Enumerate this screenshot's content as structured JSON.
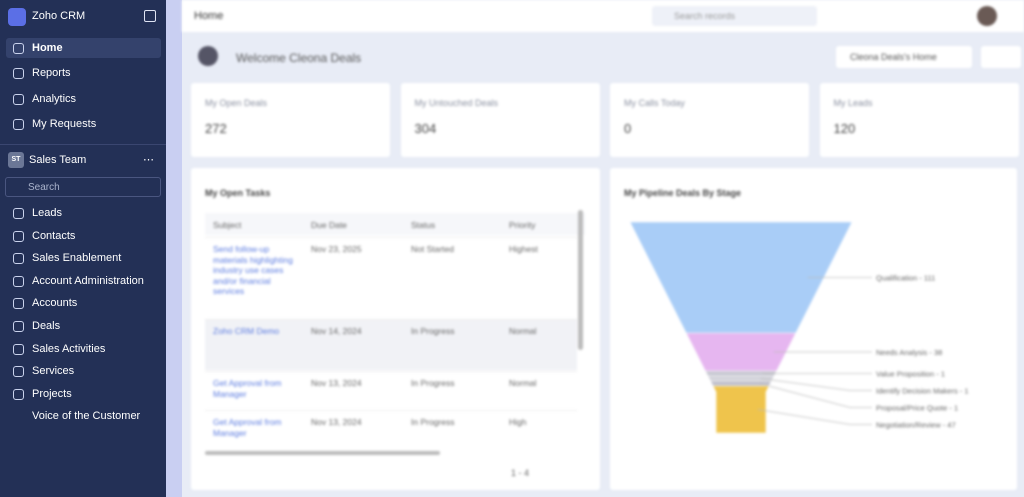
{
  "sidebar": {
    "brand": "Zoho CRM",
    "nav": [
      "Home",
      "Reports",
      "Analytics",
      "My Requests"
    ],
    "team_badge": "ST",
    "team": "Sales Team",
    "search_placeholder": "Search",
    "modules": [
      "Leads",
      "Contacts",
      "Sales Enablement",
      "Account Administration",
      "Accounts",
      "Deals",
      "Sales Activities",
      "Services",
      "Projects",
      "Voice of the Customer"
    ]
  },
  "topbar": {
    "title": "Home",
    "search_placeholder": "Search records"
  },
  "welcome": {
    "text": "Welcome Cleona Deals",
    "home_selector": "Cleona Deals's Home"
  },
  "stats": [
    {
      "label": "My Open Deals",
      "value": 272
    },
    {
      "label": "My Untouched Deals",
      "value": 304
    },
    {
      "label": "My Calls Today",
      "value": 0
    },
    {
      "label": "My Leads",
      "value": 120
    }
  ],
  "tasks": {
    "title": "My Open Tasks",
    "columns": [
      "Subject",
      "Due Date",
      "Status",
      "Priority"
    ],
    "rows": [
      [
        "Send follow-up materials highlighting industry use cases and/or financial services",
        "Nov 23, 2025",
        "Not Started",
        "Highest"
      ],
      [
        "Zoho CRM Demo",
        "Nov 14, 2024",
        "In Progress",
        "Normal"
      ],
      [
        "Get Approval from Manager",
        "Nov 13, 2024",
        "In Progress",
        "Normal"
      ],
      [
        "Get Approval from Manager",
        "Nov 13, 2024",
        "In Progress",
        "High"
      ]
    ],
    "pagination": "1 - 4"
  },
  "pipeline": {
    "title": "My Pipeline Deals By Stage",
    "stages": [
      {
        "value": 111,
        "label": "Qualification - 111",
        "color": "#a9cdf7"
      },
      {
        "value": 38,
        "label": "Needs Analysis - 38",
        "color": "#e6b6f0"
      },
      {
        "value": 1,
        "label": "Value Proposition - 1",
        "color": "#c8c8d2"
      },
      {
        "value": 1,
        "label": "Identify Decision Makers - 1",
        "color": "#d2d2da"
      },
      {
        "value": 1,
        "label": "Proposal/Price Quote - 1",
        "color": "#c0c0cc"
      },
      {
        "value": 47,
        "label": "Negotiation/Review - 47",
        "color": "#efc44c"
      }
    ]
  }
}
